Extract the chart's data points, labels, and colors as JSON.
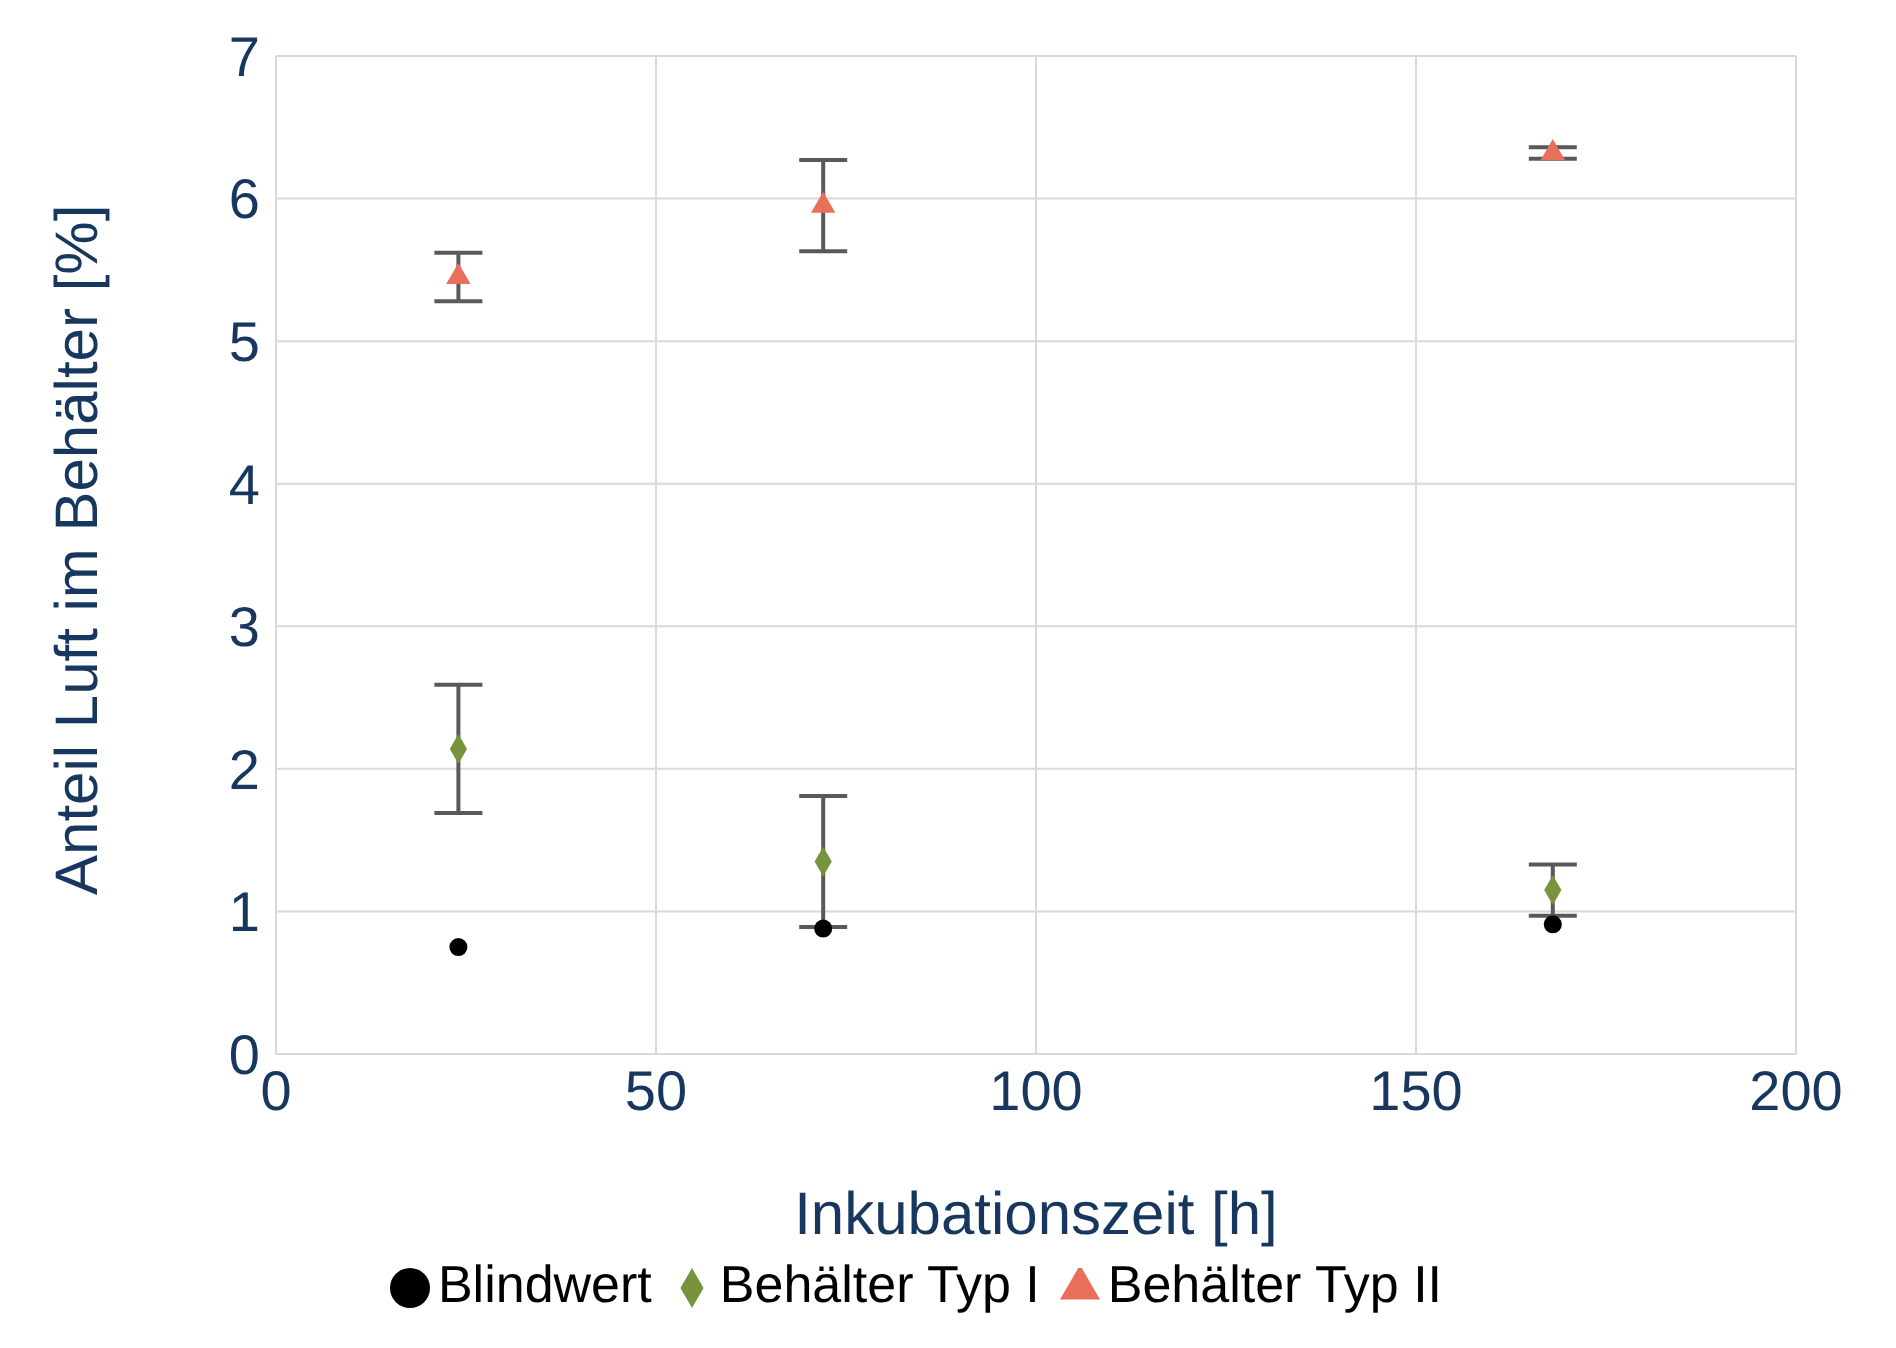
{
  "chart_data": {
    "type": "scatter",
    "xlabel": "Inkubationszeit [h]",
    "ylabel": "Anteil Luft im Behälter [%]",
    "xlim": [
      0,
      200
    ],
    "xticks": [
      0,
      50,
      100,
      150,
      200
    ],
    "ylim": [
      0,
      7
    ],
    "yticks": [
      0,
      1,
      2,
      3,
      4,
      5,
      6,
      7
    ],
    "grid": true,
    "legend": "bottom",
    "series": [
      {
        "name": "Blindwert",
        "color": "#000000",
        "marker": "circle",
        "x": [
          24,
          72,
          168
        ],
        "values": [
          0.75,
          0.88,
          0.91
        ]
      },
      {
        "name": "Behälter Typ I",
        "color": "#77933c",
        "marker": "diamond",
        "x": [
          24,
          72,
          168
        ],
        "values": [
          2.14,
          1.35,
          1.15
        ],
        "errors": [
          0.45,
          0.46,
          0.18
        ]
      },
      {
        "name": "Behälter Typ II",
        "color": "#e8705a",
        "marker": "triangle",
        "x": [
          24,
          72,
          168
        ],
        "values": [
          5.45,
          5.95,
          6.32
        ],
        "errors": [
          0.17,
          0.32,
          0.04
        ]
      }
    ]
  }
}
